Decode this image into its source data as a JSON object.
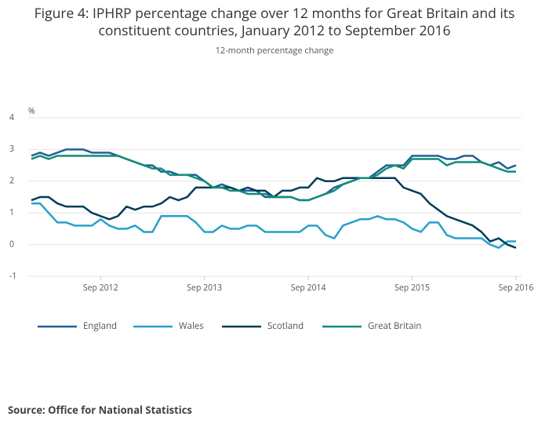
{
  "chart_data": {
    "type": "line",
    "title": "Figure 4: IPHRP percentage change over 12 months for Great Britain and its constituent countries, January 2012 to September 2016",
    "subtitle": "12-month percentage change",
    "y_unit": "%",
    "source": "Source: Office for National Statistics",
    "x": [
      "2012-01",
      "2012-02",
      "2012-03",
      "2012-04",
      "2012-05",
      "2012-06",
      "2012-07",
      "2012-08",
      "2012-09",
      "2012-10",
      "2012-11",
      "2012-12",
      "2013-01",
      "2013-02",
      "2013-03",
      "2013-04",
      "2013-05",
      "2013-06",
      "2013-07",
      "2013-08",
      "2013-09",
      "2013-10",
      "2013-11",
      "2013-12",
      "2014-01",
      "2014-02",
      "2014-03",
      "2014-04",
      "2014-05",
      "2014-06",
      "2014-07",
      "2014-08",
      "2014-09",
      "2014-10",
      "2014-11",
      "2014-12",
      "2015-01",
      "2015-02",
      "2015-03",
      "2015-04",
      "2015-05",
      "2015-06",
      "2015-07",
      "2015-08",
      "2015-09",
      "2015-10",
      "2015-11",
      "2015-12",
      "2016-01",
      "2016-02",
      "2016-03",
      "2016-04",
      "2016-05",
      "2016-06",
      "2016-07",
      "2016-08",
      "2016-09"
    ],
    "xticks": [
      {
        "value": "2012-09",
        "label": "Sep 2012"
      },
      {
        "value": "2013-09",
        "label": "Sep 2013"
      },
      {
        "value": "2014-09",
        "label": "Sep 2014"
      },
      {
        "value": "2015-09",
        "label": "Sep 2015"
      },
      {
        "value": "2016-09",
        "label": "Sep 2016"
      }
    ],
    "ylim": [
      -1,
      4
    ],
    "yticks": [
      -1,
      0,
      1,
      2,
      3,
      4
    ],
    "grid": true,
    "legend": "bottom",
    "series": [
      {
        "name": "England",
        "color": "#206095",
        "values": [
          2.8,
          2.9,
          2.8,
          2.9,
          3.0,
          3.0,
          3.0,
          2.9,
          2.9,
          2.9,
          2.8,
          2.7,
          2.6,
          2.5,
          2.5,
          2.3,
          2.3,
          2.2,
          2.2,
          2.2,
          2.0,
          1.8,
          1.9,
          1.8,
          1.7,
          1.7,
          1.7,
          1.5,
          1.5,
          1.5,
          1.5,
          1.4,
          1.4,
          1.5,
          1.6,
          1.8,
          1.9,
          2.0,
          2.1,
          2.1,
          2.3,
          2.5,
          2.5,
          2.5,
          2.8,
          2.8,
          2.8,
          2.8,
          2.7,
          2.7,
          2.8,
          2.8,
          2.6,
          2.5,
          2.6,
          2.4,
          2.5
        ]
      },
      {
        "name": "Wales",
        "color": "#27a0cc",
        "values": [
          1.3,
          1.3,
          1.0,
          0.7,
          0.7,
          0.6,
          0.6,
          0.6,
          0.8,
          0.6,
          0.5,
          0.5,
          0.6,
          0.4,
          0.4,
          0.9,
          0.9,
          0.9,
          0.9,
          0.7,
          0.4,
          0.4,
          0.6,
          0.5,
          0.5,
          0.6,
          0.6,
          0.4,
          0.4,
          0.4,
          0.4,
          0.4,
          0.6,
          0.6,
          0.3,
          0.2,
          0.6,
          0.7,
          0.8,
          0.8,
          0.9,
          0.8,
          0.8,
          0.7,
          0.5,
          0.4,
          0.7,
          0.7,
          0.3,
          0.2,
          0.2,
          0.2,
          0.2,
          0.0,
          -0.1,
          0.1,
          0.1
        ]
      },
      {
        "name": "Scotland",
        "color": "#003c57",
        "values": [
          1.4,
          1.5,
          1.5,
          1.3,
          1.2,
          1.2,
          1.2,
          1.0,
          0.9,
          0.8,
          0.9,
          1.2,
          1.1,
          1.2,
          1.2,
          1.3,
          1.5,
          1.4,
          1.5,
          1.8,
          1.8,
          1.8,
          1.8,
          1.8,
          1.7,
          1.8,
          1.7,
          1.7,
          1.5,
          1.7,
          1.7,
          1.8,
          1.8,
          2.1,
          2.0,
          2.0,
          2.1,
          2.1,
          2.1,
          2.1,
          2.1,
          2.1,
          2.1,
          1.8,
          1.7,
          1.6,
          1.3,
          1.1,
          0.9,
          0.8,
          0.7,
          0.6,
          0.4,
          0.1,
          0.2,
          0.0,
          -0.1
        ]
      },
      {
        "name": "Great Britain",
        "color": "#118c7b",
        "values": [
          2.7,
          2.8,
          2.7,
          2.8,
          2.8,
          2.8,
          2.8,
          2.8,
          2.8,
          2.8,
          2.8,
          2.7,
          2.6,
          2.5,
          2.4,
          2.4,
          2.2,
          2.2,
          2.2,
          2.1,
          2.0,
          1.8,
          1.8,
          1.7,
          1.7,
          1.6,
          1.6,
          1.6,
          1.5,
          1.5,
          1.5,
          1.4,
          1.4,
          1.5,
          1.6,
          1.7,
          1.9,
          2.0,
          2.1,
          2.1,
          2.2,
          2.4,
          2.5,
          2.4,
          2.7,
          2.7,
          2.7,
          2.7,
          2.5,
          2.6,
          2.6,
          2.6,
          2.6,
          2.5,
          2.4,
          2.3,
          2.3
        ]
      }
    ]
  }
}
